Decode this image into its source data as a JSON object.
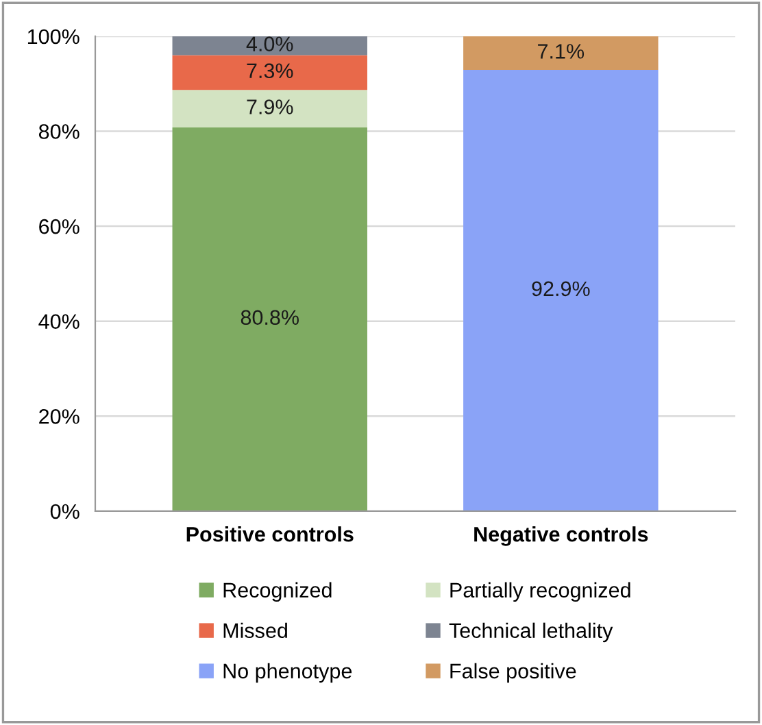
{
  "chart_data": {
    "type": "bar",
    "stacked": true,
    "categories": [
      "Positive controls",
      "Negative controls"
    ],
    "series": [
      {
        "name": "Recognized",
        "color": "#7fab62",
        "values": [
          80.8,
          null
        ],
        "value_labels": [
          "80.8%",
          null
        ]
      },
      {
        "name": "Partially recognized",
        "color": "#d3e3c2",
        "values": [
          7.9,
          null
        ],
        "value_labels": [
          "7.9%",
          null
        ]
      },
      {
        "name": "Missed",
        "color": "#e8694a",
        "values": [
          7.3,
          null
        ],
        "value_labels": [
          "7.3%",
          null
        ]
      },
      {
        "name": "Technical lethality",
        "color": "#7d8491",
        "values": [
          4.0,
          null
        ],
        "value_labels": [
          "4.0%",
          null
        ]
      },
      {
        "name": "No phenotype",
        "color": "#8aa3f7",
        "values": [
          null,
          92.9
        ],
        "value_labels": [
          null,
          "92.9%"
        ]
      },
      {
        "name": "False positive",
        "color": "#d29a62",
        "values": [
          null,
          7.1
        ],
        "value_labels": [
          null,
          "7.1%"
        ]
      }
    ],
    "ylim": [
      0,
      100
    ],
    "yticks": [
      {
        "value": 0,
        "label": "0%"
      },
      {
        "value": 20,
        "label": "20%"
      },
      {
        "value": 40,
        "label": "40%"
      },
      {
        "value": 60,
        "label": "60%"
      },
      {
        "value": 80,
        "label": "80%"
      },
      {
        "value": 100,
        "label": "100%"
      }
    ],
    "grid": "y",
    "legend": "bottom"
  }
}
